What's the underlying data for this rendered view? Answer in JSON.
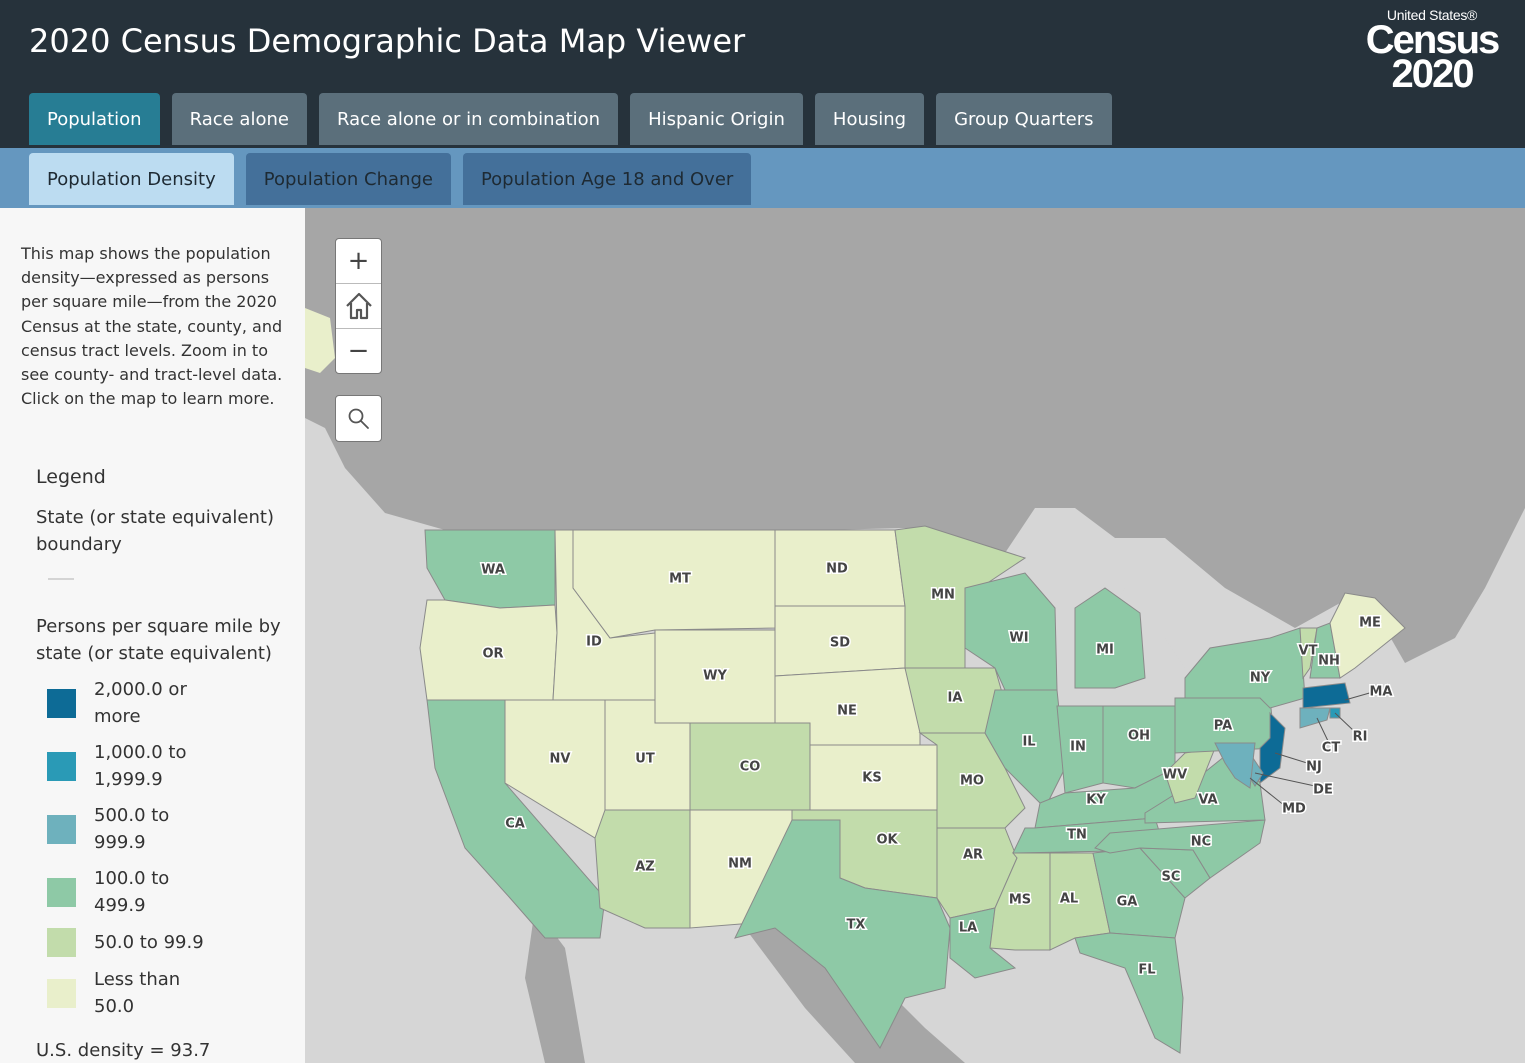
{
  "header": {
    "title": "2020 Census Demographic Data Map Viewer",
    "logo": {
      "line1": "United States®",
      "line2": "Census",
      "line3": "2020"
    }
  },
  "tabs": [
    {
      "label": "Population",
      "active": true
    },
    {
      "label": "Race alone",
      "active": false
    },
    {
      "label": "Race alone or in combination",
      "active": false
    },
    {
      "label": "Hispanic Origin",
      "active": false
    },
    {
      "label": "Housing",
      "active": false
    },
    {
      "label": "Group Quarters",
      "active": false
    }
  ],
  "subtabs": [
    {
      "label": "Population Density",
      "active": true
    },
    {
      "label": "Population Change",
      "active": false
    },
    {
      "label": "Population Age 18 and Over",
      "active": false
    }
  ],
  "sidebar": {
    "description": "This map shows the population density—expressed as persons per square mile—from the 2020 Census at the state, county, and census tract levels. Zoom in to see county- and tract-level data. Click on the map to learn more.",
    "legend": {
      "title": "Legend",
      "boundary_label": "State (or state equivalent) boundary",
      "density_heading": "Persons per square mile by state (or state equivalent)",
      "classes": [
        {
          "label": "2,000.0 or more",
          "color": "#0d6b96"
        },
        {
          "label": "1,000.0 to 1,999.9",
          "color": "#2a9ab6"
        },
        {
          "label": "500.0 to 999.9",
          "color": "#6eb1bd"
        },
        {
          "label": "100.0 to 499.9",
          "color": "#8ec9a6"
        },
        {
          "label": "50.0 to 99.9",
          "color": "#c2dcab"
        },
        {
          "label": "Less than 50.0",
          "color": "#e9efcb"
        }
      ],
      "us_density": "U.S. density = 93.7"
    }
  },
  "map_controls": {
    "zoom_in": "+",
    "home_icon": "home-icon",
    "zoom_out": "−",
    "search_icon": "search-icon"
  },
  "states": [
    {
      "abbr": "WA",
      "class": 3
    },
    {
      "abbr": "OR",
      "class": 5
    },
    {
      "abbr": "CA",
      "class": 3
    },
    {
      "abbr": "NV",
      "class": 5
    },
    {
      "abbr": "ID",
      "class": 5
    },
    {
      "abbr": "MT",
      "class": 5
    },
    {
      "abbr": "WY",
      "class": 5
    },
    {
      "abbr": "UT",
      "class": 5
    },
    {
      "abbr": "CO",
      "class": 4
    },
    {
      "abbr": "AZ",
      "class": 4
    },
    {
      "abbr": "NM",
      "class": 5
    },
    {
      "abbr": "ND",
      "class": 5
    },
    {
      "abbr": "SD",
      "class": 5
    },
    {
      "abbr": "NE",
      "class": 5
    },
    {
      "abbr": "KS",
      "class": 5
    },
    {
      "abbr": "OK",
      "class": 4
    },
    {
      "abbr": "TX",
      "class": 3
    },
    {
      "abbr": "MN",
      "class": 4
    },
    {
      "abbr": "IA",
      "class": 4
    },
    {
      "abbr": "MO",
      "class": 4
    },
    {
      "abbr": "AR",
      "class": 4
    },
    {
      "abbr": "LA",
      "class": 3
    },
    {
      "abbr": "WI",
      "class": 3
    },
    {
      "abbr": "IL",
      "class": 3
    },
    {
      "abbr": "MI",
      "class": 3
    },
    {
      "abbr": "IN",
      "class": 3
    },
    {
      "abbr": "OH",
      "class": 3
    },
    {
      "abbr": "KY",
      "class": 3
    },
    {
      "abbr": "TN",
      "class": 3
    },
    {
      "abbr": "MS",
      "class": 4
    },
    {
      "abbr": "AL",
      "class": 4
    },
    {
      "abbr": "GA",
      "class": 3
    },
    {
      "abbr": "FL",
      "class": 3
    },
    {
      "abbr": "SC",
      "class": 3
    },
    {
      "abbr": "NC",
      "class": 3
    },
    {
      "abbr": "VA",
      "class": 3
    },
    {
      "abbr": "WV",
      "class": 4
    },
    {
      "abbr": "PA",
      "class": 3
    },
    {
      "abbr": "NY",
      "class": 3
    },
    {
      "abbr": "VT",
      "class": 4
    },
    {
      "abbr": "NH",
      "class": 3
    },
    {
      "abbr": "ME",
      "class": 5
    },
    {
      "abbr": "MA",
      "class": 0
    },
    {
      "abbr": "RI",
      "class": 1
    },
    {
      "abbr": "CT",
      "class": 2
    },
    {
      "abbr": "NJ",
      "class": 0
    },
    {
      "abbr": "DE",
      "class": 2
    },
    {
      "abbr": "MD",
      "class": 2
    }
  ]
}
